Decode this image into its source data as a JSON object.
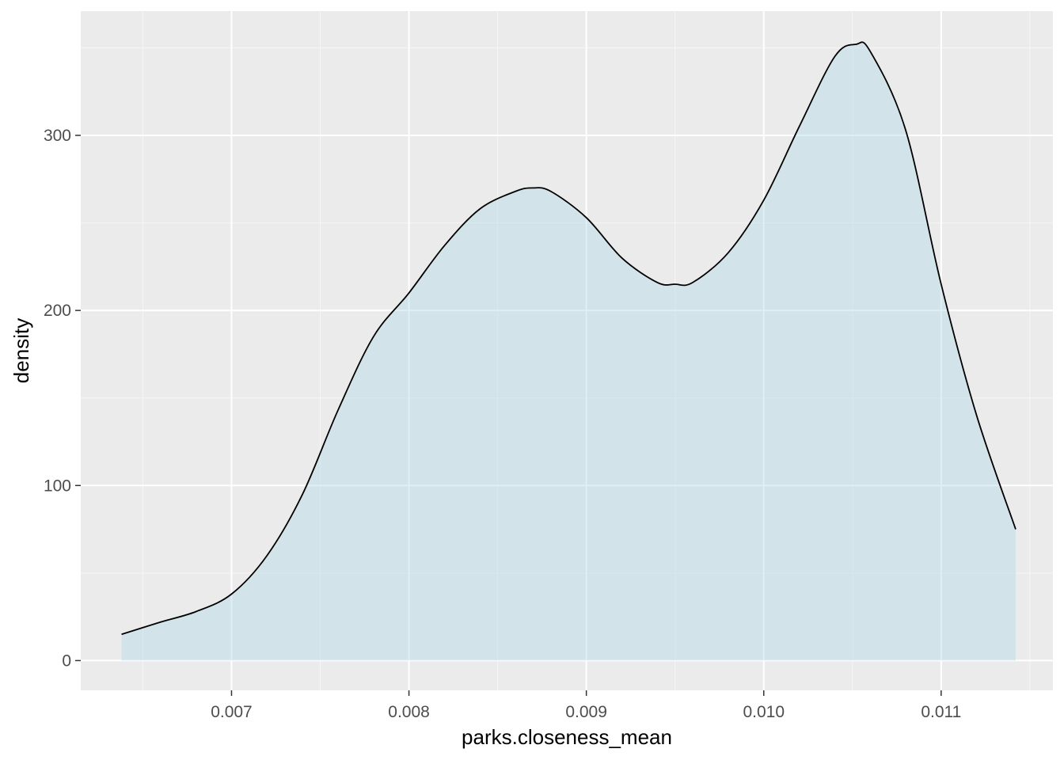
{
  "chart_data": {
    "type": "area",
    "title": "",
    "xlabel": "parks.closeness_mean",
    "ylabel": "density",
    "xlim": [
      0.00615,
      0.01163
    ],
    "ylim": [
      -17,
      371
    ],
    "x_ticks": [
      {
        "value": 0.007,
        "label": "0.007"
      },
      {
        "value": 0.008,
        "label": "0.008"
      },
      {
        "value": 0.009,
        "label": "0.009"
      },
      {
        "value": 0.01,
        "label": "0.010"
      },
      {
        "value": 0.011,
        "label": "0.011"
      }
    ],
    "x_minor_ticks": [
      0.0065,
      0.0075,
      0.0085,
      0.0095,
      0.0105,
      0.0115
    ],
    "y_ticks": [
      {
        "value": 0,
        "label": "0"
      },
      {
        "value": 100,
        "label": "100"
      },
      {
        "value": 200,
        "label": "200"
      },
      {
        "value": 300,
        "label": "300"
      }
    ],
    "y_minor_ticks": [
      50,
      150,
      250,
      350
    ],
    "grid": true,
    "colors": {
      "panel_bg": "#ebebeb",
      "grid_major": "#ffffff",
      "fill": "#add8e6",
      "fill_opacity": 0.4,
      "line": "#000000"
    },
    "x": [
      0.00638,
      0.0066,
      0.0068,
      0.007,
      0.0072,
      0.0074,
      0.0076,
      0.0078,
      0.008,
      0.0082,
      0.0084,
      0.0086,
      0.0087,
      0.0088,
      0.009,
      0.0092,
      0.0094,
      0.0095,
      0.0096,
      0.0098,
      0.01,
      0.0102,
      0.0104,
      0.01052,
      0.0106,
      0.0108,
      0.011,
      0.0112,
      0.01142
    ],
    "y": [
      15,
      22,
      28,
      38,
      60,
      95,
      143,
      185,
      210,
      237,
      258,
      268,
      270,
      268,
      253,
      230,
      216,
      215,
      216,
      233,
      263,
      305,
      345,
      352,
      348,
      303,
      215,
      140,
      75
    ]
  }
}
